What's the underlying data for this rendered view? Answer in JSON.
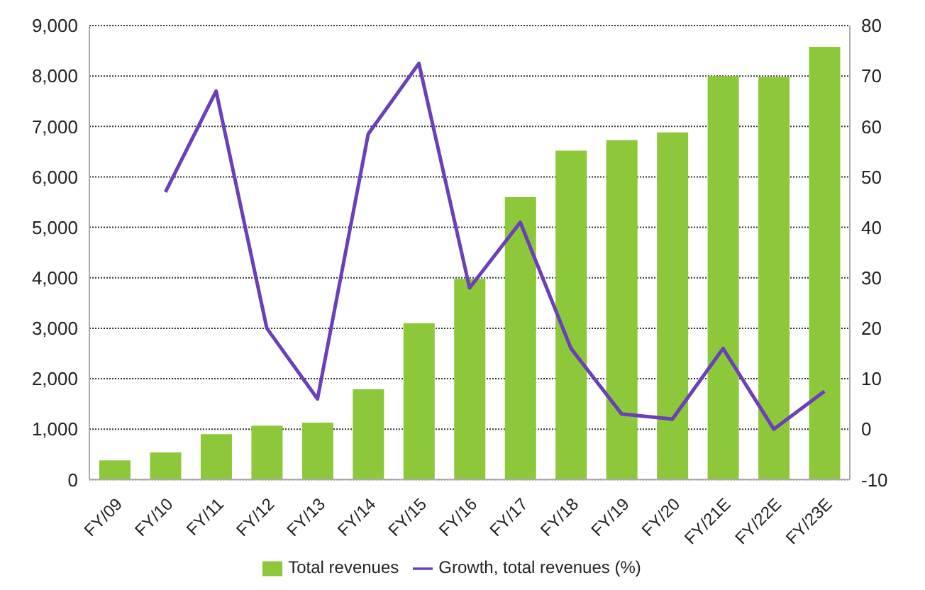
{
  "chart_data": {
    "type": "bar",
    "categories": [
      "FY/09",
      "FY/10",
      "FY/11",
      "FY/12",
      "FY/13",
      "FY/14",
      "FY/15",
      "FY/16",
      "FY/17",
      "FY/18",
      "FY/19",
      "FY/20",
      "FY/21E",
      "FY/22E",
      "FY/23E"
    ],
    "series": [
      {
        "name": "Total revenues",
        "color": "#8cc83a",
        "values": [
          380,
          540,
          900,
          1070,
          1130,
          1790,
          3100,
          3980,
          5600,
          6520,
          6730,
          6880,
          8000,
          7980,
          8580
        ]
      },
      {
        "name": "Growth, total revenues (%)",
        "type": "line",
        "axis": "y2",
        "color": "#6a3fb8",
        "values": [
          null,
          47,
          67,
          20,
          6,
          58.5,
          72.5,
          28,
          41,
          16,
          3,
          2,
          16,
          0,
          7.5
        ]
      }
    ],
    "ylim": [
      0,
      9000
    ],
    "yticks": [
      {
        "value": 0,
        "label": "0"
      },
      {
        "value": 1000,
        "label": "1,000"
      },
      {
        "value": 2000,
        "label": "2,000"
      },
      {
        "value": 3000,
        "label": "3,000"
      },
      {
        "value": 4000,
        "label": "4,000"
      },
      {
        "value": 5000,
        "label": "5,000"
      },
      {
        "value": 6000,
        "label": "6,000"
      },
      {
        "value": 7000,
        "label": "7,000"
      },
      {
        "value": 8000,
        "label": "8,000"
      },
      {
        "value": 9000,
        "label": "9,000"
      }
    ],
    "y2lim": [
      -10,
      80
    ],
    "y2ticks": [
      -10,
      0,
      10,
      20,
      30,
      40,
      50,
      60,
      70,
      80
    ],
    "grid": "y",
    "legend": "bottom",
    "marker": "none",
    "line_style": "solid"
  }
}
